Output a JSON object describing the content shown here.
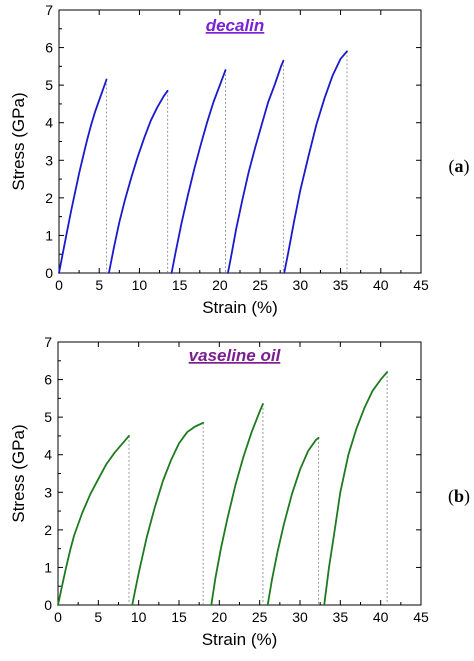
{
  "chart_data": [
    {
      "type": "line",
      "title": "decalin",
      "panel_label": "(a)",
      "panel_letter": "a",
      "xlabel": "Strain (%)",
      "ylabel": "Stress (GPa)",
      "xlim": [
        0,
        45
      ],
      "ylim": [
        0,
        7
      ],
      "xticks": [
        "0",
        "5",
        "10",
        "15",
        "20",
        "25",
        "30",
        "35",
        "40",
        "45"
      ],
      "yticks": [
        "0",
        "1",
        "2",
        "3",
        "4",
        "5",
        "6",
        "7"
      ],
      "grid": false,
      "legend": "none",
      "colors": {
        "line": "#1a1acc",
        "title": "#7b22d6",
        "dropline": "#999999"
      },
      "series": [
        {
          "x": [
            0.0,
            0.5,
            1.0,
            1.5,
            2.0,
            2.5,
            3.0,
            3.5,
            4.0,
            4.5,
            5.0,
            5.5,
            5.9
          ],
          "y": [
            0.0,
            0.55,
            1.1,
            1.65,
            2.15,
            2.65,
            3.1,
            3.55,
            3.95,
            4.3,
            4.6,
            4.9,
            5.15
          ]
        },
        {
          "x": [
            6.2,
            6.8,
            7.5,
            8.2,
            9.0,
            9.8,
            10.6,
            11.4,
            12.2,
            13.0,
            13.5
          ],
          "y": [
            0.0,
            0.65,
            1.35,
            1.95,
            2.55,
            3.1,
            3.6,
            4.05,
            4.4,
            4.7,
            4.85
          ]
        },
        {
          "x": [
            14.0,
            14.5,
            15.2,
            16.0,
            16.8,
            17.6,
            18.4,
            19.2,
            20.0,
            20.7
          ],
          "y": [
            0.0,
            0.55,
            1.3,
            2.05,
            2.75,
            3.4,
            4.0,
            4.55,
            5.0,
            5.4
          ]
        },
        {
          "x": [
            21.0,
            21.4,
            22.0,
            22.8,
            23.6,
            24.4,
            25.2,
            26.0,
            26.8,
            27.6,
            27.9
          ],
          "y": [
            0.0,
            0.45,
            1.15,
            1.95,
            2.7,
            3.35,
            3.95,
            4.55,
            5.0,
            5.5,
            5.65
          ]
        },
        {
          "x": [
            28.0,
            28.5,
            29.2,
            30.0,
            31.0,
            32.0,
            33.0,
            34.0,
            35.0,
            35.8
          ],
          "y": [
            0.0,
            0.55,
            1.35,
            2.2,
            3.1,
            3.95,
            4.65,
            5.25,
            5.7,
            5.9
          ]
        }
      ]
    },
    {
      "type": "line",
      "title": "vaseline oil",
      "panel_label": "(b)",
      "panel_letter": "b",
      "xlabel": "Strain (%)",
      "ylabel": "Stress (GPa)",
      "xlim": [
        0,
        45
      ],
      "ylim": [
        0,
        7
      ],
      "xticks": [
        "0",
        "5",
        "10",
        "15",
        "20",
        "25",
        "30",
        "35",
        "40",
        "45"
      ],
      "yticks": [
        "0",
        "1",
        "2",
        "3",
        "4",
        "5",
        "6",
        "7"
      ],
      "grid": false,
      "legend": "none",
      "colors": {
        "line": "#1e7a1e",
        "title": "#7a1f8e",
        "dropline": "#999999"
      },
      "series": [
        {
          "x": [
            0.0,
            0.5,
            1.0,
            1.5,
            2.0,
            3.0,
            4.0,
            5.0,
            6.0,
            7.0,
            8.0,
            8.8
          ],
          "y": [
            0.0,
            0.5,
            1.0,
            1.45,
            1.85,
            2.45,
            2.95,
            3.35,
            3.75,
            4.05,
            4.3,
            4.5
          ]
        },
        {
          "x": [
            9.2,
            10.0,
            11.0,
            12.0,
            13.0,
            14.0,
            15.0,
            16.0,
            17.0,
            18.0
          ],
          "y": [
            0.0,
            0.85,
            1.8,
            2.6,
            3.3,
            3.85,
            4.3,
            4.6,
            4.75,
            4.85
          ]
        },
        {
          "x": [
            19.0,
            19.5,
            20.2,
            21.0,
            22.0,
            23.0,
            24.0,
            25.0,
            25.4
          ],
          "y": [
            0.0,
            0.7,
            1.5,
            2.3,
            3.2,
            3.95,
            4.6,
            5.15,
            5.35
          ]
        },
        {
          "x": [
            26.0,
            26.5,
            27.2,
            28.0,
            29.0,
            30.0,
            31.0,
            32.0,
            32.3
          ],
          "y": [
            0.0,
            0.65,
            1.4,
            2.15,
            2.95,
            3.6,
            4.1,
            4.4,
            4.45
          ]
        },
        {
          "x": [
            33.0,
            33.6,
            34.2,
            35.0,
            36.0,
            37.0,
            38.0,
            39.0,
            40.0,
            40.8
          ],
          "y": [
            0.0,
            1.0,
            1.85,
            3.0,
            4.0,
            4.7,
            5.25,
            5.7,
            6.0,
            6.2
          ]
        }
      ]
    }
  ]
}
